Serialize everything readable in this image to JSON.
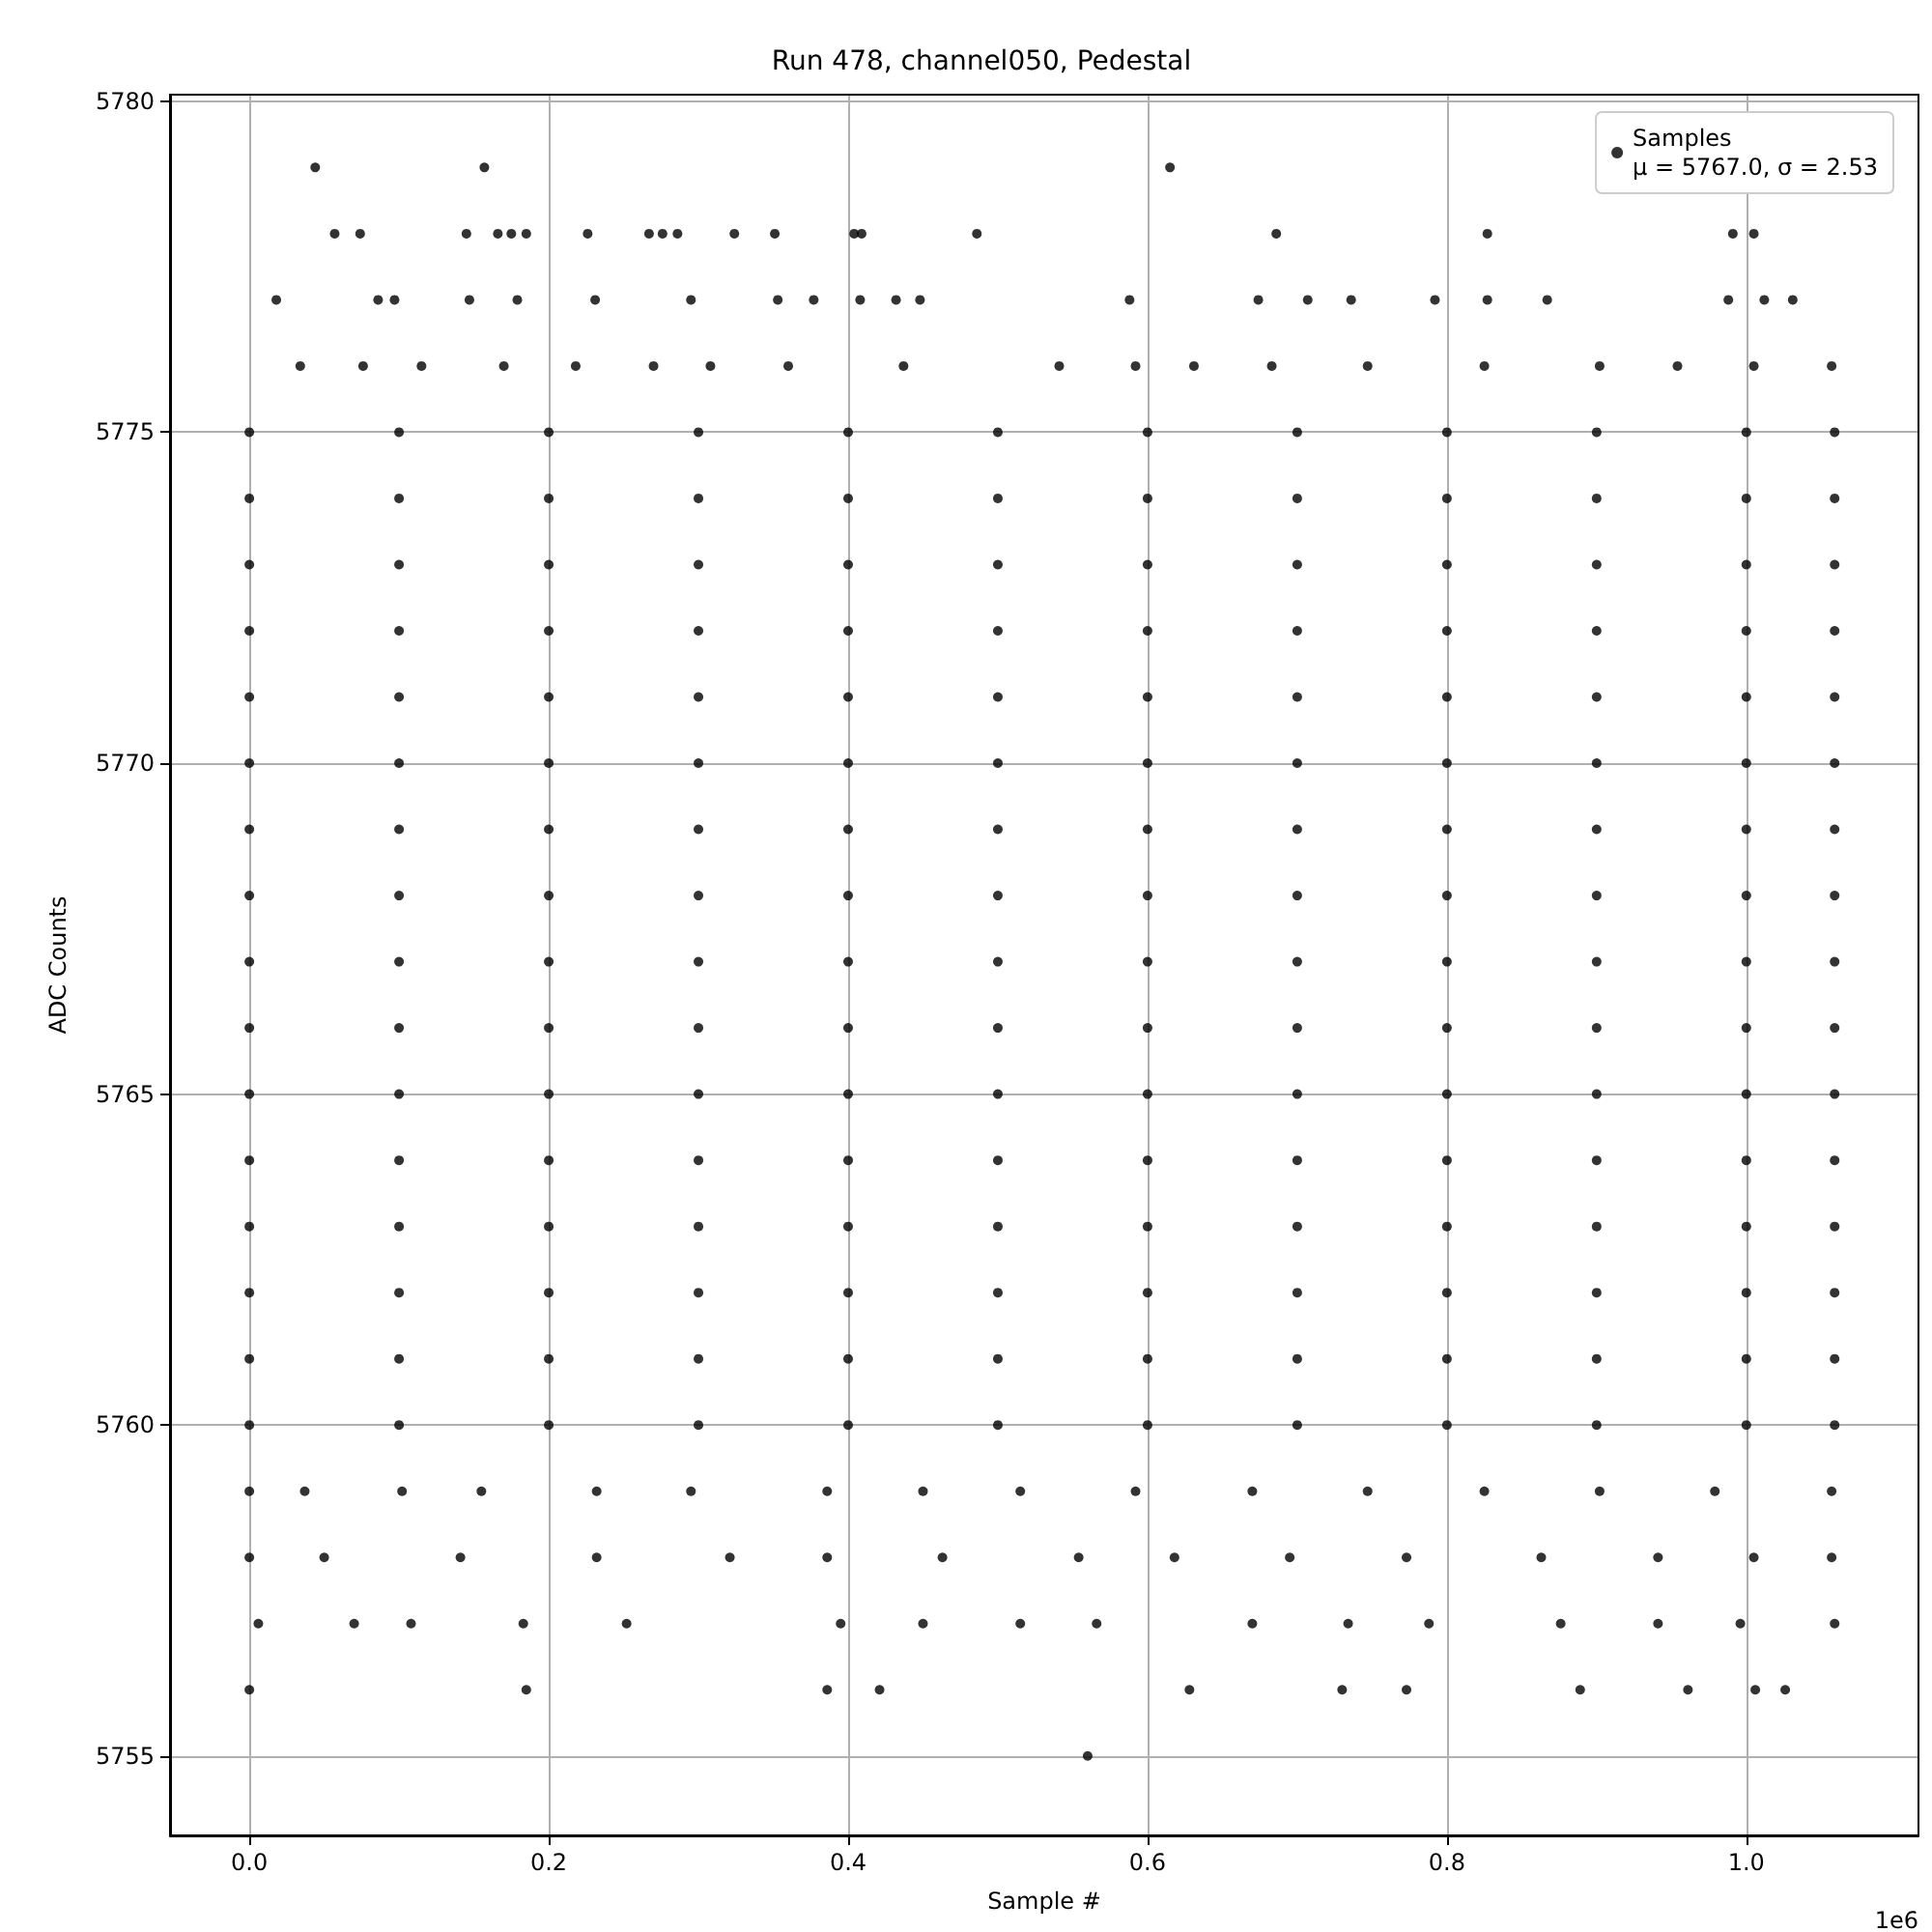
{
  "chart_data": {
    "type": "scatter",
    "title": "Run 478, channel050, Pedestal",
    "xlabel": "Sample #",
    "ylabel": "ADC Counts",
    "xlim": [
      -0.053,
      1.115
    ],
    "xticks": [
      {
        "value": 0,
        "label": "0.0"
      },
      0.2,
      0.4,
      0.6,
      0.8,
      {
        "value": 1,
        "label": "1.0"
      }
    ],
    "ylim": [
      5753.8,
      5780.1
    ],
    "yticks": [
      5755,
      5760,
      5765,
      5770,
      5775,
      5780
    ],
    "grid": true,
    "legend": "top right",
    "marker": "circle",
    "annotations": [
      "1e6"
    ],
    "series": [
      {
        "name": "Samples\nμ = 5767.0, σ = 2.53",
        "color": "#000000",
        "x": [
          0.044,
          0.157,
          0.615,
          0.057,
          0.074,
          0.145,
          0.166,
          0.175,
          0.185,
          0.226,
          0.267,
          0.276,
          0.286,
          0.324,
          0.351,
          0.404,
          0.409,
          0.486,
          0.686,
          0.827,
          0.991,
          1.005,
          0.018,
          0.086,
          0.097,
          0.147,
          0.179,
          0.231,
          0.295,
          0.353,
          0.377,
          0.408,
          0.432,
          0.448,
          0.588,
          0.674,
          0.707,
          0.736,
          0.792,
          0.827,
          0.867,
          0.988,
          1.012,
          1.031,
          0.034,
          0.076,
          0.115,
          0.17,
          0.218,
          0.27,
          0.308,
          0.36,
          0.437,
          0.541,
          0.592,
          0.631,
          0.683,
          0.747,
          0.825,
          0.902,
          0.954,
          1.005,
          1.057,
          0,
          0.1,
          0.2,
          0.3,
          0.4,
          0.5,
          0.6,
          0.7,
          0.8,
          0.9,
          1,
          1.059,
          0,
          0.1,
          0.2,
          0.3,
          0.4,
          0.5,
          0.6,
          0.7,
          0.8,
          0.9,
          1,
          1.059,
          0,
          0.1,
          0.2,
          0.3,
          0.4,
          0.5,
          0.6,
          0.7,
          0.8,
          0.9,
          1,
          1.059,
          0,
          0.1,
          0.2,
          0.3,
          0.4,
          0.5,
          0.6,
          0.7,
          0.8,
          0.9,
          1,
          1.059,
          0,
          0.1,
          0.2,
          0.3,
          0.4,
          0.5,
          0.6,
          0.7,
          0.8,
          0.9,
          1,
          1.059,
          0,
          0.1,
          0.2,
          0.3,
          0.4,
          0.5,
          0.6,
          0.7,
          0.8,
          0.9,
          1,
          1.059,
          0,
          0.1,
          0.2,
          0.3,
          0.4,
          0.5,
          0.6,
          0.7,
          0.8,
          0.9,
          1,
          1.059,
          0,
          0.1,
          0.2,
          0.3,
          0.4,
          0.5,
          0.6,
          0.7,
          0.8,
          0.9,
          1,
          1.059,
          0,
          0.1,
          0.2,
          0.3,
          0.4,
          0.5,
          0.6,
          0.7,
          0.8,
          0.9,
          1,
          1.059,
          0,
          0.1,
          0.2,
          0.3,
          0.4,
          0.5,
          0.6,
          0.7,
          0.8,
          0.9,
          1,
          1.059,
          0,
          0.1,
          0.2,
          0.3,
          0.4,
          0.5,
          0.6,
          0.7,
          0.8,
          0.9,
          1,
          1.059,
          0,
          0.1,
          0.2,
          0.3,
          0.4,
          0.5,
          0.6,
          0.7,
          0.8,
          0.9,
          1,
          1.059,
          0,
          0.1,
          0.2,
          0.3,
          0.4,
          0.5,
          0.6,
          0.7,
          0.8,
          0.9,
          1,
          1.059,
          0,
          0.1,
          0.2,
          0.3,
          0.4,
          0.5,
          0.6,
          0.7,
          0.8,
          0.9,
          1,
          1.059,
          0,
          0.1,
          0.2,
          0.3,
          0.4,
          0.5,
          0.6,
          0.7,
          0.8,
          0.9,
          1,
          1.059,
          0,
          0.1,
          0.2,
          0.3,
          0.4,
          0.5,
          0.6,
          0.7,
          0.8,
          0.9,
          1,
          1.059,
          0,
          0.037,
          0.102,
          0.155,
          0.232,
          0.295,
          0.386,
          0.45,
          0.515,
          0.592,
          0.67,
          0.747,
          0.825,
          0.902,
          0.979,
          1.057,
          0,
          0.05,
          0.141,
          0.232,
          0.321,
          0.386,
          0.463,
          0.554,
          0.618,
          0.695,
          0.773,
          0.863,
          0.941,
          1.005,
          1.057,
          0.006,
          0.07,
          0.108,
          0.183,
          0.252,
          0.395,
          0.45,
          0.515,
          0.566,
          0.67,
          0.734,
          0.788,
          0.876,
          0.941,
          0.996,
          1.059,
          0,
          0.185,
          0.386,
          0.421,
          0.628,
          0.73,
          0.773,
          0.889,
          0.961,
          1.006,
          1.026,
          0.56
        ],
        "values": [
          5779,
          5779,
          5779,
          5778,
          5778,
          5778,
          5778,
          5778,
          5778,
          5778,
          5778,
          5778,
          5778,
          5778,
          5778,
          5778,
          5778,
          5778,
          5778,
          5778,
          5778,
          5778,
          5777,
          5777,
          5777,
          5777,
          5777,
          5777,
          5777,
          5777,
          5777,
          5777,
          5777,
          5777,
          5777,
          5777,
          5777,
          5777,
          5777,
          5777,
          5777,
          5777,
          5777,
          5777,
          5776,
          5776,
          5776,
          5776,
          5776,
          5776,
          5776,
          5776,
          5776,
          5776,
          5776,
          5776,
          5776,
          5776,
          5776,
          5776,
          5776,
          5776,
          5776,
          5775,
          5775,
          5775,
          5775,
          5775,
          5775,
          5775,
          5775,
          5775,
          5775,
          5775,
          5775,
          5774,
          5774,
          5774,
          5774,
          5774,
          5774,
          5774,
          5774,
          5774,
          5774,
          5774,
          5774,
          5773,
          5773,
          5773,
          5773,
          5773,
          5773,
          5773,
          5773,
          5773,
          5773,
          5773,
          5773,
          5772,
          5772,
          5772,
          5772,
          5772,
          5772,
          5772,
          5772,
          5772,
          5772,
          5772,
          5772,
          5771,
          5771,
          5771,
          5771,
          5771,
          5771,
          5771,
          5771,
          5771,
          5771,
          5771,
          5771,
          5770,
          5770,
          5770,
          5770,
          5770,
          5770,
          5770,
          5770,
          5770,
          5770,
          5770,
          5770,
          5769,
          5769,
          5769,
          5769,
          5769,
          5769,
          5769,
          5769,
          5769,
          5769,
          5769,
          5769,
          5768,
          5768,
          5768,
          5768,
          5768,
          5768,
          5768,
          5768,
          5768,
          5768,
          5768,
          5768,
          5767,
          5767,
          5767,
          5767,
          5767,
          5767,
          5767,
          5767,
          5767,
          5767,
          5767,
          5767,
          5766,
          5766,
          5766,
          5766,
          5766,
          5766,
          5766,
          5766,
          5766,
          5766,
          5766,
          5766,
          5765,
          5765,
          5765,
          5765,
          5765,
          5765,
          5765,
          5765,
          5765,
          5765,
          5765,
          5765,
          5764,
          5764,
          5764,
          5764,
          5764,
          5764,
          5764,
          5764,
          5764,
          5764,
          5764,
          5764,
          5763,
          5763,
          5763,
          5763,
          5763,
          5763,
          5763,
          5763,
          5763,
          5763,
          5763,
          5763,
          5762,
          5762,
          5762,
          5762,
          5762,
          5762,
          5762,
          5762,
          5762,
          5762,
          5762,
          5762,
          5761,
          5761,
          5761,
          5761,
          5761,
          5761,
          5761,
          5761,
          5761,
          5761,
          5761,
          5761,
          5760,
          5760,
          5760,
          5760,
          5760,
          5760,
          5760,
          5760,
          5760,
          5760,
          5760,
          5760,
          5759,
          5759,
          5759,
          5759,
          5759,
          5759,
          5759,
          5759,
          5759,
          5759,
          5759,
          5759,
          5759,
          5759,
          5759,
          5759,
          5758,
          5758,
          5758,
          5758,
          5758,
          5758,
          5758,
          5758,
          5758,
          5758,
          5758,
          5758,
          5758,
          5758,
          5758,
          5757,
          5757,
          5757,
          5757,
          5757,
          5757,
          5757,
          5757,
          5757,
          5757,
          5757,
          5757,
          5757,
          5757,
          5757,
          5757,
          5756,
          5756,
          5756,
          5756,
          5756,
          5756,
          5756,
          5756,
          5756,
          5756,
          5756,
          5755
        ]
      }
    ]
  }
}
